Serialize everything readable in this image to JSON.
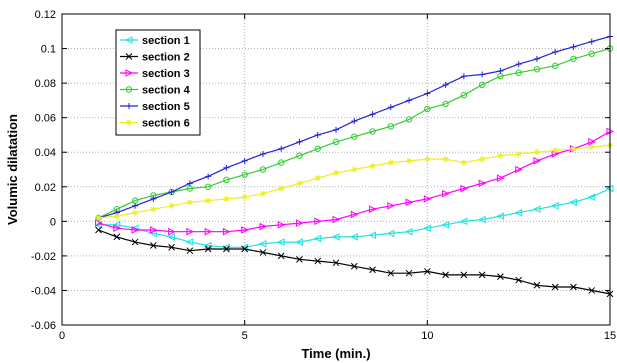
{
  "chart_data": {
    "type": "line",
    "title": "",
    "xlabel": "Time (min.)",
    "ylabel": "Volumic dilatation",
    "xlim": [
      0,
      15
    ],
    "ylim": [
      -0.06,
      0.12
    ],
    "xticks": [
      0,
      5,
      10,
      15
    ],
    "yticks": [
      -0.06,
      -0.04,
      -0.02,
      0,
      0.02,
      0.04,
      0.06,
      0.08,
      0.1,
      0.12
    ],
    "xtick_labels": [
      "0",
      "5",
      "10",
      "15"
    ],
    "ytick_labels": [
      "-0.06",
      "-0.04",
      "-0.02",
      "0",
      "0.02",
      "0.04",
      "0.06",
      "0.08",
      "0.1",
      "0.12"
    ],
    "grid": true,
    "legend_position": "top-left",
    "series": [
      {
        "name": "section 1",
        "color": "#22e0e0",
        "marker": "left-triangle",
        "x": [
          1,
          1.5,
          2,
          2.5,
          3,
          3.5,
          4,
          4.5,
          5,
          5.5,
          6,
          6.5,
          7,
          7.5,
          8,
          8.5,
          9,
          9.5,
          10,
          10.5,
          11,
          11.5,
          12,
          12.5,
          13,
          13.5,
          14,
          14.5,
          15
        ],
        "y": [
          -0.002,
          -0.002,
          -0.004,
          -0.007,
          -0.009,
          -0.012,
          -0.014,
          -0.015,
          -0.015,
          -0.013,
          -0.012,
          -0.012,
          -0.01,
          -0.009,
          -0.009,
          -0.008,
          -0.007,
          -0.006,
          -0.004,
          -0.002,
          0.0,
          0.001,
          0.003,
          0.005,
          0.007,
          0.009,
          0.011,
          0.014,
          0.019
        ]
      },
      {
        "name": "section 2",
        "color": "#000000",
        "marker": "x",
        "x": [
          1,
          1.5,
          2,
          2.5,
          3,
          3.5,
          4,
          4.5,
          5,
          5.5,
          6,
          6.5,
          7,
          7.5,
          8,
          8.5,
          9,
          9.5,
          10,
          10.5,
          11,
          11.5,
          12,
          12.5,
          13,
          13.5,
          14,
          14.5,
          15
        ],
        "y": [
          -0.005,
          -0.009,
          -0.012,
          -0.014,
          -0.015,
          -0.017,
          -0.016,
          -0.016,
          -0.016,
          -0.018,
          -0.02,
          -0.022,
          -0.023,
          -0.024,
          -0.026,
          -0.028,
          -0.03,
          -0.03,
          -0.029,
          -0.031,
          -0.031,
          -0.031,
          -0.032,
          -0.034,
          -0.037,
          -0.038,
          -0.038,
          -0.04,
          -0.042
        ]
      },
      {
        "name": "section 3",
        "color": "#ff00ff",
        "marker": "right-triangle",
        "x": [
          1,
          1.5,
          2,
          2.5,
          3,
          3.5,
          4,
          4.5,
          5,
          5.5,
          6,
          6.5,
          7,
          7.5,
          8,
          8.5,
          9,
          9.5,
          10,
          10.5,
          11,
          11.5,
          12,
          12.5,
          13,
          13.5,
          14,
          14.5,
          15
        ],
        "y": [
          -0.001,
          -0.004,
          -0.005,
          -0.005,
          -0.006,
          -0.006,
          -0.006,
          -0.006,
          -0.005,
          -0.003,
          -0.002,
          -0.001,
          0.0,
          0.001,
          0.004,
          0.007,
          0.009,
          0.011,
          0.013,
          0.016,
          0.019,
          0.022,
          0.025,
          0.03,
          0.035,
          0.039,
          0.042,
          0.046,
          0.052
        ]
      },
      {
        "name": "section 4",
        "color": "#33cc33",
        "marker": "circle",
        "x": [
          1,
          1.5,
          2,
          2.5,
          3,
          3.5,
          4,
          4.5,
          5,
          5.5,
          6,
          6.5,
          7,
          7.5,
          8,
          8.5,
          9,
          9.5,
          10,
          10.5,
          11,
          11.5,
          12,
          12.5,
          13,
          13.5,
          14,
          14.5,
          15
        ],
        "y": [
          0.002,
          0.007,
          0.012,
          0.015,
          0.017,
          0.019,
          0.02,
          0.024,
          0.027,
          0.03,
          0.034,
          0.038,
          0.042,
          0.046,
          0.049,
          0.052,
          0.055,
          0.059,
          0.065,
          0.068,
          0.073,
          0.079,
          0.084,
          0.086,
          0.088,
          0.09,
          0.094,
          0.097,
          0.1
        ]
      },
      {
        "name": "section 5",
        "color": "#2222dd",
        "marker": "plus",
        "x": [
          1,
          1.5,
          2,
          2.5,
          3,
          3.5,
          4,
          4.5,
          5,
          5.5,
          6,
          6.5,
          7,
          7.5,
          8,
          8.5,
          9,
          9.5,
          10,
          10.5,
          11,
          11.5,
          12,
          12.5,
          13,
          13.5,
          14,
          14.5,
          15
        ],
        "y": [
          0.002,
          0.005,
          0.009,
          0.013,
          0.017,
          0.022,
          0.026,
          0.031,
          0.035,
          0.039,
          0.042,
          0.046,
          0.05,
          0.053,
          0.058,
          0.062,
          0.066,
          0.07,
          0.074,
          0.079,
          0.084,
          0.085,
          0.087,
          0.091,
          0.094,
          0.098,
          0.101,
          0.104,
          0.107
        ]
      },
      {
        "name": "section 6",
        "color": "#eeee22",
        "marker": "star",
        "x": [
          1,
          1.5,
          2,
          2.5,
          3,
          3.5,
          4,
          4.5,
          5,
          5.5,
          6,
          6.5,
          7,
          7.5,
          8,
          8.5,
          9,
          9.5,
          10,
          10.5,
          11,
          11.5,
          12,
          12.5,
          13,
          13.5,
          14,
          14.5,
          15
        ],
        "y": [
          0.002,
          0.003,
          0.005,
          0.007,
          0.009,
          0.011,
          0.012,
          0.013,
          0.014,
          0.016,
          0.019,
          0.022,
          0.025,
          0.028,
          0.03,
          0.032,
          0.034,
          0.035,
          0.036,
          0.036,
          0.034,
          0.036,
          0.038,
          0.039,
          0.04,
          0.041,
          0.042,
          0.043,
          0.044
        ]
      }
    ]
  }
}
